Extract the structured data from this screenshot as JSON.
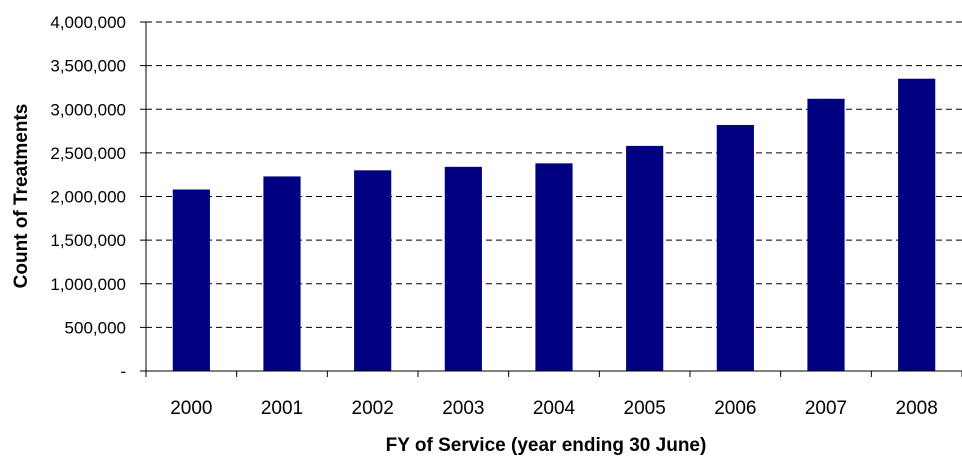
{
  "chart_data": {
    "type": "bar",
    "title": "",
    "xlabel": "FY of Service (year ending 30 June)",
    "ylabel": "Count of Treatments",
    "categories": [
      "2000",
      "2001",
      "2002",
      "2003",
      "2004",
      "2005",
      "2006",
      "2007",
      "2008"
    ],
    "values": [
      2080000,
      2230000,
      2300000,
      2340000,
      2380000,
      2580000,
      2820000,
      3120000,
      3350000
    ],
    "ylim": [
      0,
      4000000
    ],
    "yticks": [
      0,
      500000,
      1000000,
      1500000,
      2000000,
      2500000,
      3000000,
      3500000,
      4000000
    ],
    "ytick_labels": [
      "-",
      "500,000",
      "1,000,000",
      "1,500,000",
      "2,000,000",
      "2,500,000",
      "3,000,000",
      "3,500,000",
      "4,000,000"
    ],
    "grid": "horizontal dashed",
    "legend": "none",
    "bar_color": "#000080",
    "axis_color": "#000000",
    "grid_color": "#000000"
  }
}
